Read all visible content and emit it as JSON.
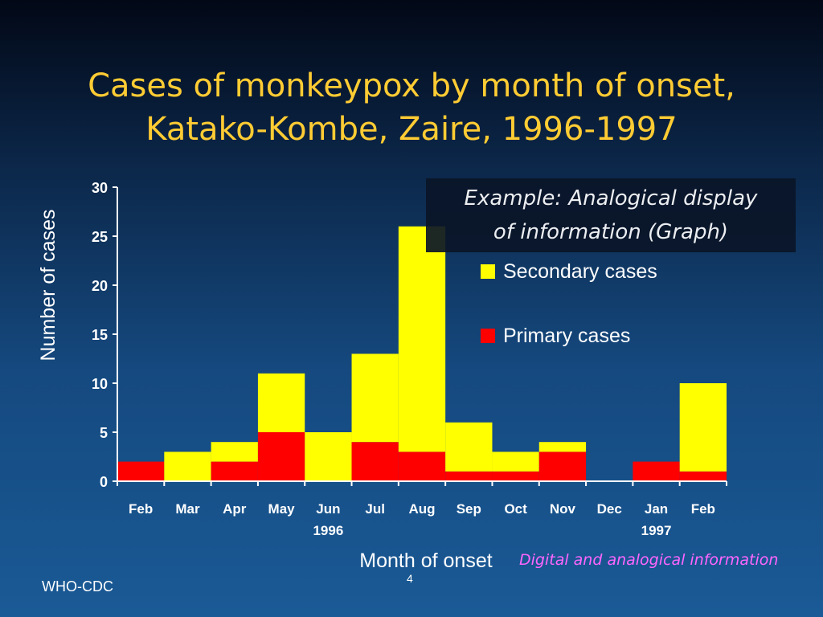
{
  "slide": {
    "title_line1": "Cases of monkeypox by month of onset,",
    "title_line2": "Katako-Kombe, Zaire, 1996-1997",
    "callout_line1": "Example: Analogical display",
    "callout_line2": "of information (Graph)",
    "footer": "WHO-CDC",
    "page_number": "4",
    "note": "Digital and analogical information"
  },
  "chart_data": {
    "type": "bar",
    "stacked": true,
    "categories": [
      "Feb",
      "Mar",
      "Apr",
      "May",
      "Jun",
      "Jul",
      "Aug",
      "Sep",
      "Oct",
      "Nov",
      "Dec",
      "Jan",
      "Feb"
    ],
    "year_labels": [
      {
        "category_index": 4,
        "label": "1996"
      },
      {
        "category_index": 11,
        "label": "1997"
      }
    ],
    "series": [
      {
        "name": "Primary cases",
        "color": "#ff0000",
        "values": [
          2,
          0,
          2,
          5,
          0,
          4,
          3,
          1,
          1,
          3,
          0,
          2,
          1
        ]
      },
      {
        "name": "Secondary cases",
        "color": "#ffff00",
        "values": [
          0,
          3,
          2,
          6,
          5,
          9,
          23,
          5,
          2,
          1,
          0,
          0,
          9
        ]
      }
    ],
    "xlabel": "Month of onset",
    "ylabel": "Number of cases",
    "ylim": [
      0,
      30
    ],
    "yticks": [
      0,
      5,
      10,
      15,
      20,
      25,
      30
    ],
    "grid": false,
    "legend_placement": "right"
  }
}
